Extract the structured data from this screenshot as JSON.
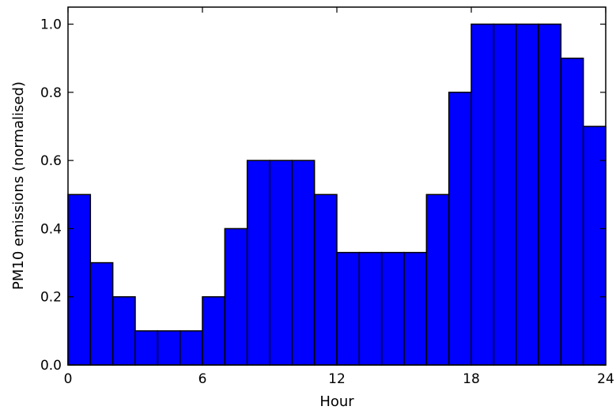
{
  "chart_data": {
    "type": "bar",
    "title": "",
    "xlabel": "Hour",
    "ylabel": "PM10 emissions (normalised)",
    "xlim": [
      0,
      24
    ],
    "ylim": [
      0,
      1.05
    ],
    "x_ticks": [
      "0",
      "6",
      "12",
      "18",
      "24"
    ],
    "x_tick_values": [
      0,
      6,
      12,
      18,
      24
    ],
    "y_ticks": [
      "0.0",
      "0.2",
      "0.4",
      "0.6",
      "0.8",
      "1.0"
    ],
    "y_tick_values": [
      0,
      0.2,
      0.4,
      0.6,
      0.8,
      1.0
    ],
    "bin_width": 1,
    "bins": [
      0,
      1,
      2,
      3,
      4,
      5,
      6,
      7,
      8,
      9,
      10,
      11,
      12,
      13,
      14,
      15,
      16,
      17,
      18,
      19,
      20,
      21,
      22,
      23
    ],
    "values": [
      0.5,
      0.3,
      0.2,
      0.1,
      0.1,
      0.1,
      0.2,
      0.4,
      0.6,
      0.6,
      0.6,
      0.5,
      0.33,
      0.33,
      0.33,
      0.33,
      0.5,
      0.8,
      1.0,
      1.0,
      1.0,
      1.0,
      0.9,
      0.7
    ],
    "bar_color": "#0000ff",
    "edge_color": "#000000",
    "grid": false,
    "legend": "none"
  }
}
